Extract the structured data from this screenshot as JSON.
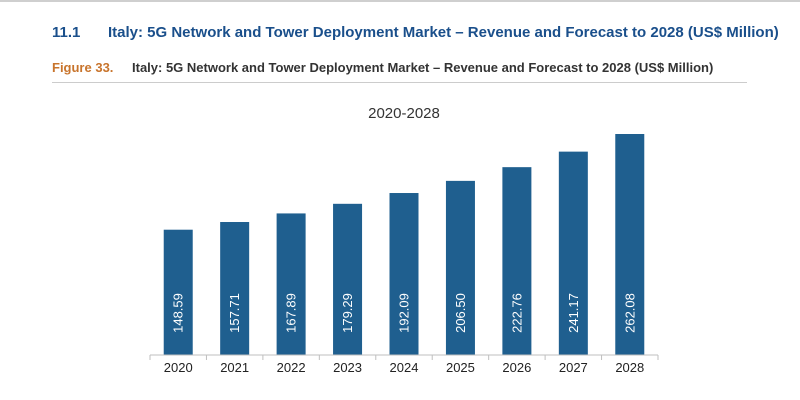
{
  "section": {
    "number": "11.1",
    "title": "Italy: 5G Network and Tower Deployment Market – Revenue and Forecast to 2028 (US$ Million)"
  },
  "figure": {
    "number": "Figure 33.",
    "caption": "Italy: 5G Network and Tower Deployment Market – Revenue and Forecast to 2028 (US$ Million)"
  },
  "colors": {
    "bar": "#1f5f8f",
    "heading": "#1a4f8b",
    "figure_number": "#c8742c"
  },
  "chart_data": {
    "type": "bar",
    "title": "2020-2028",
    "xlabel": "",
    "ylabel": "",
    "categories": [
      "2020",
      "2021",
      "2022",
      "2023",
      "2024",
      "2025",
      "2026",
      "2027",
      "2028"
    ],
    "values": [
      148.59,
      157.71,
      167.89,
      179.29,
      192.09,
      206.5,
      222.76,
      241.17,
      262.08
    ],
    "value_labels": [
      "148.59",
      "157.71",
      "167.89",
      "179.29",
      "192.09",
      "206.50",
      "222.76",
      "241.17",
      "262.08"
    ],
    "ylim": [
      0,
      262.08
    ],
    "grid": false,
    "legend": "none"
  }
}
